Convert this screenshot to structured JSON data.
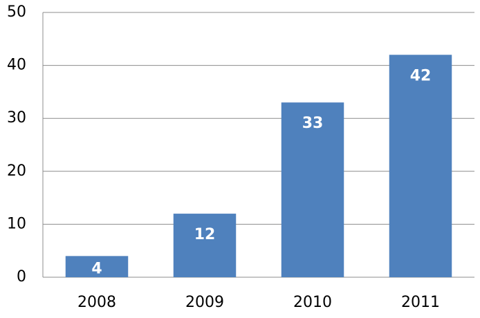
{
  "chart_data": {
    "type": "bar",
    "categories": [
      "2008",
      "2009",
      "2010",
      "2011"
    ],
    "values": [
      4,
      12,
      33,
      42
    ],
    "color": "#4f81bd",
    "ylim": [
      0,
      50
    ],
    "yticks": [
      0,
      10,
      20,
      30,
      40,
      50
    ],
    "grid": true
  }
}
